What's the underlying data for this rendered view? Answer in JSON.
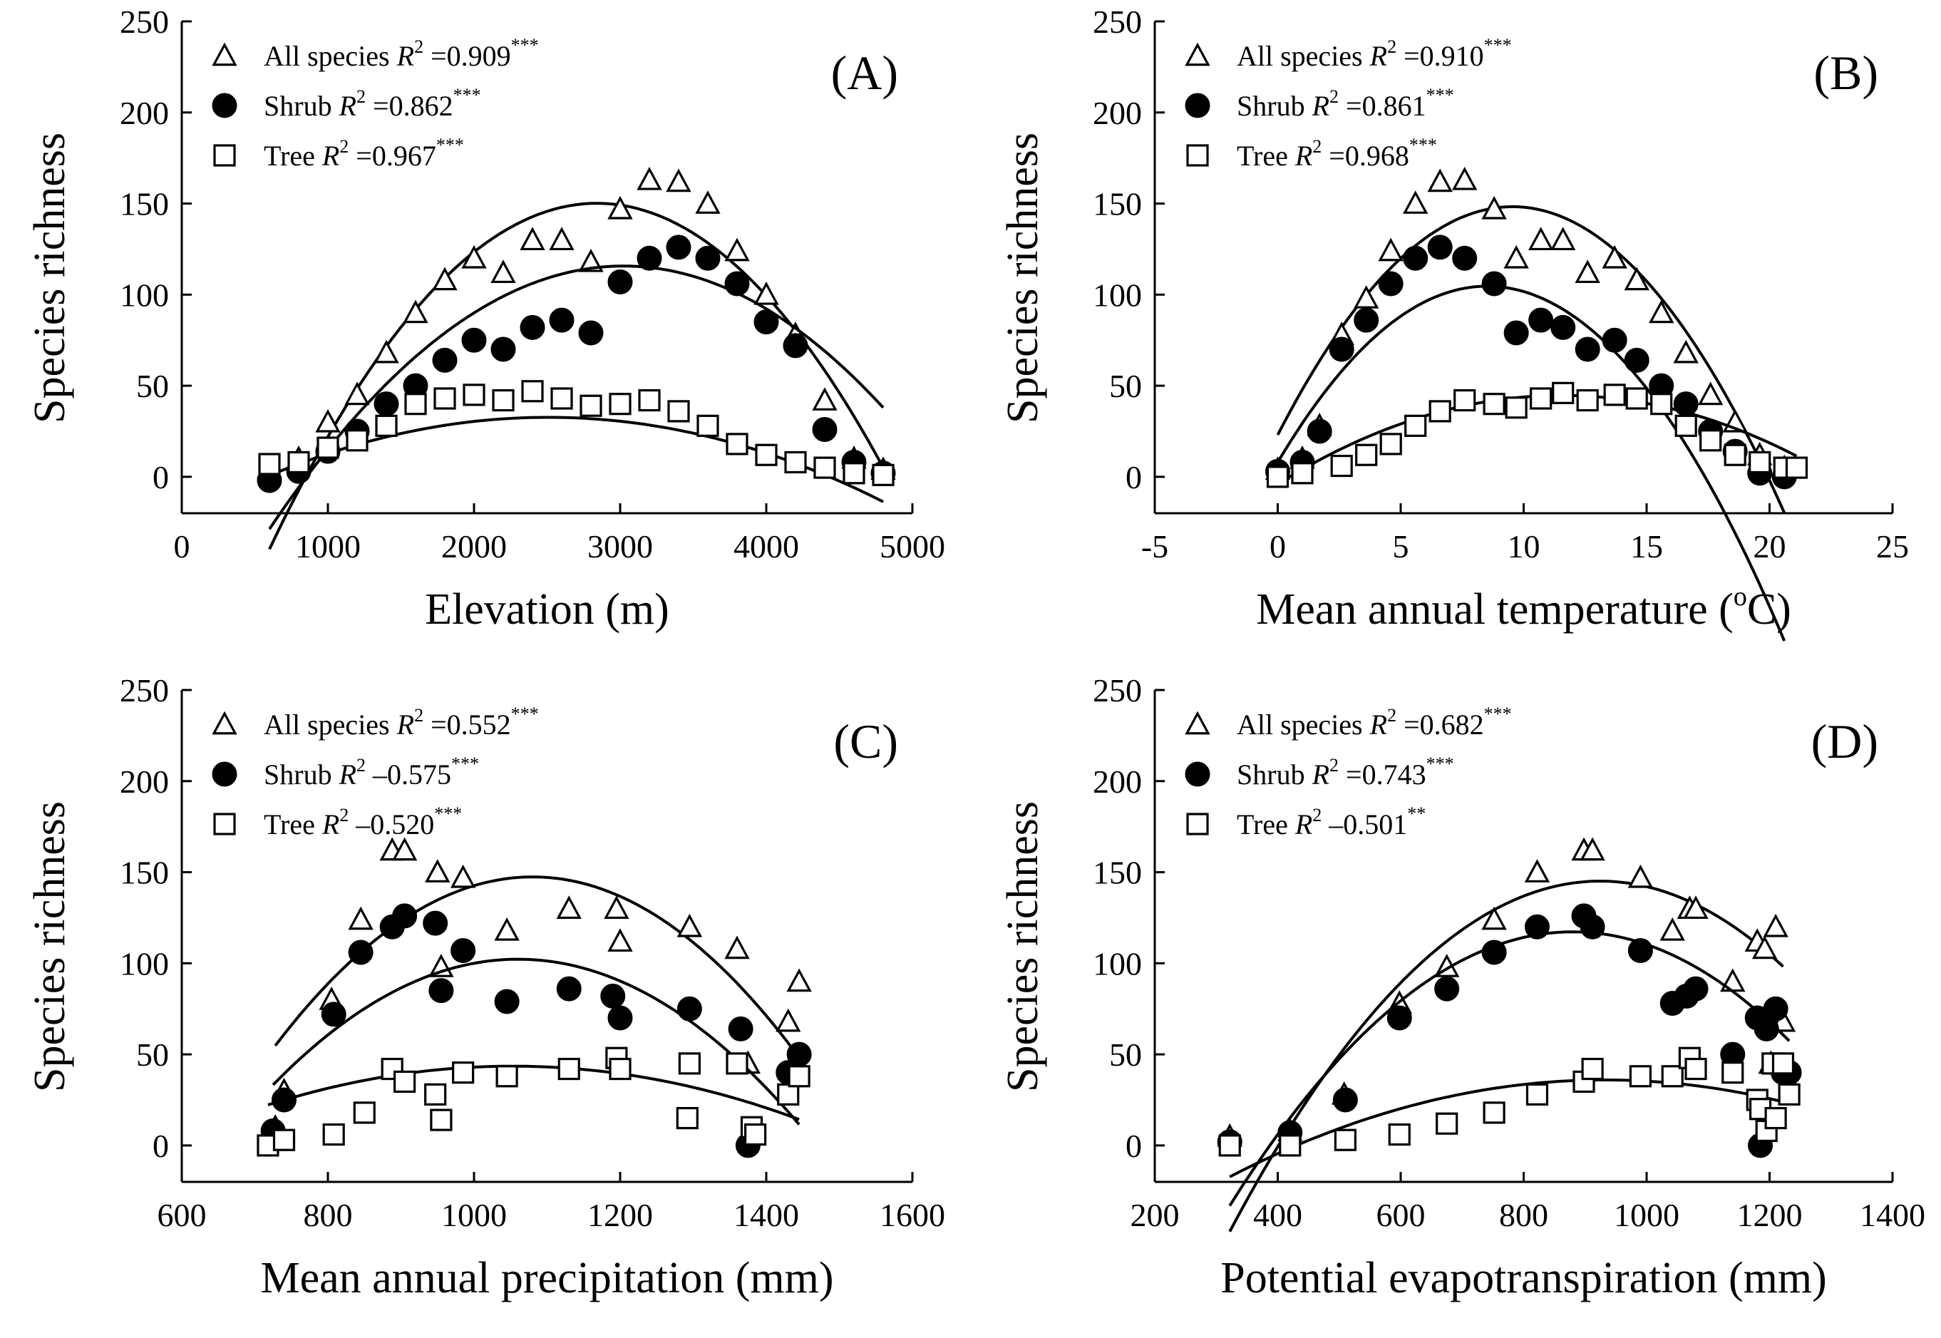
{
  "figure": {
    "ylabel": "Species richness"
  },
  "chart_data": [
    {
      "id": "A",
      "type": "scatter",
      "panel_label": "(A)",
      "xlabel": "Elevation (m)",
      "ylabel": "Species richness",
      "xlim": [
        0,
        5000
      ],
      "ylim": [
        -20,
        250
      ],
      "xticks": [
        0,
        1000,
        2000,
        3000,
        4000,
        5000
      ],
      "yticks": [
        0,
        50,
        100,
        150,
        200,
        250
      ],
      "legend": [
        {
          "marker": "triangle",
          "text": "All species",
          "r2": "=0.909",
          "sig": "***"
        },
        {
          "marker": "circle",
          "text": "Shrub",
          "r2": "=0.862",
          "sig": "***"
        },
        {
          "marker": "square",
          "text": "Tree",
          "r2": "=0.967",
          "sig": "***"
        }
      ],
      "series": [
        {
          "name": "All species",
          "marker": "triangle",
          "x": [
            600,
            800,
            1000,
            1200,
            1400,
            1600,
            1800,
            2000,
            2200,
            2400,
            2600,
            2800,
            3000,
            3200,
            3400,
            3600,
            3800,
            4000,
            4200,
            4400,
            4600,
            4800
          ],
          "y": [
            5,
            10,
            30,
            45,
            68,
            90,
            108,
            120,
            112,
            130,
            130,
            118,
            147,
            163,
            162,
            150,
            124,
            100,
            78,
            42,
            10,
            4
          ],
          "fit": [
            -155,
            0.2148,
            -3.78e-05
          ]
        },
        {
          "name": "Shrub",
          "marker": "circle",
          "x": [
            600,
            800,
            1000,
            1200,
            1400,
            1600,
            1800,
            2000,
            2200,
            2400,
            2600,
            2800,
            3000,
            3200,
            3400,
            3600,
            3800,
            4000,
            4200,
            4400,
            4600,
            4800
          ],
          "y": [
            -2,
            3,
            14,
            25,
            40,
            50,
            64,
            75,
            70,
            82,
            86,
            79,
            107,
            120,
            126,
            120,
            106,
            85,
            72,
            26,
            8,
            2
          ],
          "fit": [
            -109,
            0.1487,
            -2.46e-05
          ]
        },
        {
          "name": "Tree",
          "marker": "square",
          "x": [
            600,
            800,
            1000,
            1200,
            1400,
            1600,
            1800,
            2000,
            2200,
            2400,
            2600,
            2800,
            3000,
            3200,
            3400,
            3600,
            3800,
            4000,
            4200,
            4400,
            4600,
            4800
          ],
          "y": [
            7,
            8,
            16,
            20,
            28,
            40,
            43,
            45,
            42,
            47,
            43,
            39,
            40,
            42,
            36,
            28,
            18,
            12,
            8,
            5,
            2,
            1
          ],
          "fit": [
            -22.6,
            0.0441,
            -8.8e-06
          ]
        }
      ]
    },
    {
      "id": "B",
      "type": "scatter",
      "panel_label": "(B)",
      "xlabel": "Mean annual temperature (oC)",
      "xlabel_main": "Mean annual temperature (",
      "xlabel_sup": "o",
      "xlabel_end": "C)",
      "ylabel": "Species richness",
      "xlim": [
        -5,
        25
      ],
      "ylim": [
        -20,
        250
      ],
      "xticks": [
        -5,
        0,
        5,
        10,
        15,
        20,
        25
      ],
      "yticks": [
        0,
        50,
        100,
        150,
        200,
        250
      ],
      "legend": [
        {
          "marker": "triangle",
          "text": "All species",
          "r2": "=0.910",
          "sig": "***"
        },
        {
          "marker": "circle",
          "text": "Shrub",
          "r2": "=0.861",
          "sig": "***"
        },
        {
          "marker": "square",
          "text": "Tree",
          "r2": "=0.968",
          "sig": "***"
        }
      ],
      "series": [
        {
          "name": "All species",
          "marker": "triangle",
          "x": [
            0,
            1,
            1.7,
            2.6,
            3.6,
            4.6,
            5.6,
            6.6,
            7.6,
            8.8,
            9.7,
            10.7,
            11.6,
            12.6,
            13.7,
            14.6,
            15.6,
            16.6,
            17.6,
            18.6,
            19.6,
            20.6
          ],
          "y": [
            4,
            10,
            28,
            78,
            98,
            124,
            150,
            162,
            163,
            147,
            120,
            130,
            130,
            112,
            120,
            108,
            90,
            68,
            45,
            30,
            12,
            5
          ],
          "fit": [
            23,
            26.25,
            -1.375
          ]
        },
        {
          "name": "Shrub",
          "marker": "circle",
          "x": [
            0,
            1,
            1.7,
            2.6,
            3.6,
            4.6,
            5.6,
            6.6,
            7.6,
            8.8,
            9.7,
            10.7,
            11.6,
            12.6,
            13.7,
            14.6,
            15.6,
            16.6,
            17.6,
            18.6,
            19.6,
            20.6
          ],
          "y": [
            3,
            8,
            25,
            70,
            86,
            106,
            120,
            126,
            120,
            106,
            79,
            86,
            82,
            70,
            75,
            64,
            50,
            40,
            25,
            14,
            2,
            0
          ],
          "fit": [
            8,
            22.7,
            -1.333
          ]
        },
        {
          "name": "Tree",
          "marker": "square",
          "x": [
            0,
            1,
            2.6,
            3.6,
            4.6,
            5.6,
            6.6,
            7.6,
            8.8,
            9.7,
            10.7,
            11.6,
            12.6,
            13.7,
            14.6,
            15.6,
            16.6,
            17.6,
            18.6,
            19.6,
            20.6,
            21.1
          ],
          "y": [
            0,
            2,
            6,
            12,
            18,
            28,
            36,
            42,
            40,
            38,
            43,
            46,
            42,
            45,
            43,
            40,
            28,
            20,
            12,
            8,
            5,
            5
          ],
          "fit": [
            -4,
            8.43,
            -0.365
          ]
        }
      ]
    },
    {
      "id": "C",
      "type": "scatter",
      "panel_label": "(C)",
      "xlabel": "Mean annual precipitation (mm)",
      "ylabel": "Species richness",
      "xlim": [
        600,
        1600
      ],
      "ylim": [
        -20,
        250
      ],
      "xticks": [
        600,
        800,
        1000,
        1200,
        1400,
        1600
      ],
      "yticks": [
        0,
        50,
        100,
        150,
        200,
        250
      ],
      "legend": [
        {
          "marker": "triangle",
          "text": "All species",
          "r2": "=0.552",
          "sig": "***"
        },
        {
          "marker": "circle",
          "text": "Shrub",
          "r2": "–0.575",
          "sig": "***"
        },
        {
          "marker": "square",
          "text": "Tree",
          "r2": "–0.520",
          "sig": "***"
        }
      ],
      "series": [
        {
          "name": "All species",
          "marker": "triangle",
          "x": [
            728,
            740,
            805,
            845,
            888,
            905,
            950,
            955,
            985,
            1045,
            1130,
            1195,
            1200,
            1295,
            1360,
            1375,
            1430,
            1445
          ],
          "y": [
            10,
            30,
            80,
            124,
            162,
            162,
            150,
            98,
            147,
            118,
            130,
            130,
            112,
            120,
            108,
            45,
            68,
            90
          ],
          "fit": [
            -723.3,
            1.6119,
            -0.000746
          ]
        },
        {
          "name": "Shrub",
          "marker": "circle",
          "x": [
            725,
            740,
            808,
            845,
            888,
            905,
            947,
            955,
            985,
            1045,
            1130,
            1190,
            1200,
            1295,
            1365,
            1375,
            1430,
            1445
          ],
          "y": [
            8,
            25,
            72,
            106,
            120,
            126,
            122,
            85,
            107,
            79,
            86,
            82,
            70,
            75,
            64,
            0,
            40,
            50
          ],
          "fit": [
            -587,
            1.3,
            -0.000613
          ]
        },
        {
          "name": "Tree",
          "marker": "square",
          "x": [
            718,
            740,
            808,
            850,
            888,
            905,
            947,
            955,
            985,
            1045,
            1130,
            1195,
            1200,
            1292,
            1295,
            1360,
            1380,
            1385,
            1430,
            1445
          ],
          "y": [
            0,
            3,
            6,
            18,
            42,
            35,
            28,
            14,
            40,
            38,
            42,
            48,
            42,
            15,
            45,
            45,
            10,
            6,
            28,
            38
          ],
          "fit": [
            -167,
            0.4,
            -0.00019
          ]
        }
      ]
    },
    {
      "id": "D",
      "type": "scatter",
      "panel_label": "(D)",
      "xlabel": "Potential evapotranspiration (mm)",
      "ylabel": "Species richness",
      "xlim": [
        200,
        1400
      ],
      "ylim": [
        -20,
        250
      ],
      "xticks": [
        200,
        400,
        600,
        800,
        1000,
        1200,
        1400
      ],
      "yticks": [
        0,
        50,
        100,
        150,
        200,
        250
      ],
      "legend": [
        {
          "marker": "triangle",
          "text": "All species",
          "r2": "=0.682",
          "sig": "***"
        },
        {
          "marker": "circle",
          "text": "Shrub",
          "r2": "=0.743",
          "sig": "***"
        },
        {
          "marker": "square",
          "text": "Tree",
          "r2": "–0.501",
          "sig": "**"
        }
      ],
      "series": [
        {
          "name": "All species",
          "marker": "triangle",
          "x": [
            322,
            420,
            508,
            598,
            675,
            752,
            822,
            898,
            912,
            990,
            1042,
            1070,
            1080,
            1140,
            1180,
            1192,
            1202,
            1210,
            1222
          ],
          "y": [
            5,
            8,
            28,
            78,
            98,
            124,
            150,
            162,
            162,
            147,
            118,
            130,
            130,
            90,
            112,
            108,
            45,
            120,
            68
          ],
          "fit": [
            -307.9,
            0.98,
            -0.00053
          ]
        },
        {
          "name": "Shrub",
          "marker": "circle",
          "x": [
            322,
            420,
            510,
            598,
            675,
            752,
            822,
            898,
            912,
            990,
            1042,
            1065,
            1080,
            1140,
            1180,
            1185,
            1195,
            1210,
            1222,
            1232
          ],
          "y": [
            2,
            7,
            25,
            70,
            86,
            106,
            120,
            126,
            120,
            107,
            78,
            82,
            86,
            50,
            70,
            0,
            64,
            75,
            40,
            40
          ],
          "fit": [
            -256.7,
            0.85,
            -0.000483
          ]
        },
        {
          "name": "Tree",
          "marker": "square",
          "x": [
            322,
            420,
            510,
            598,
            675,
            752,
            822,
            898,
            912,
            990,
            1042,
            1070,
            1080,
            1140,
            1180,
            1185,
            1195,
            1205,
            1210,
            1222,
            1232
          ],
          "y": [
            0,
            0,
            3,
            6,
            12,
            18,
            28,
            35,
            42,
            38,
            38,
            48,
            42,
            40,
            25,
            20,
            8,
            45,
            15,
            45,
            28
          ],
          "fit": [
            -88.2,
            0.2665,
            -0.000143
          ]
        }
      ]
    }
  ]
}
